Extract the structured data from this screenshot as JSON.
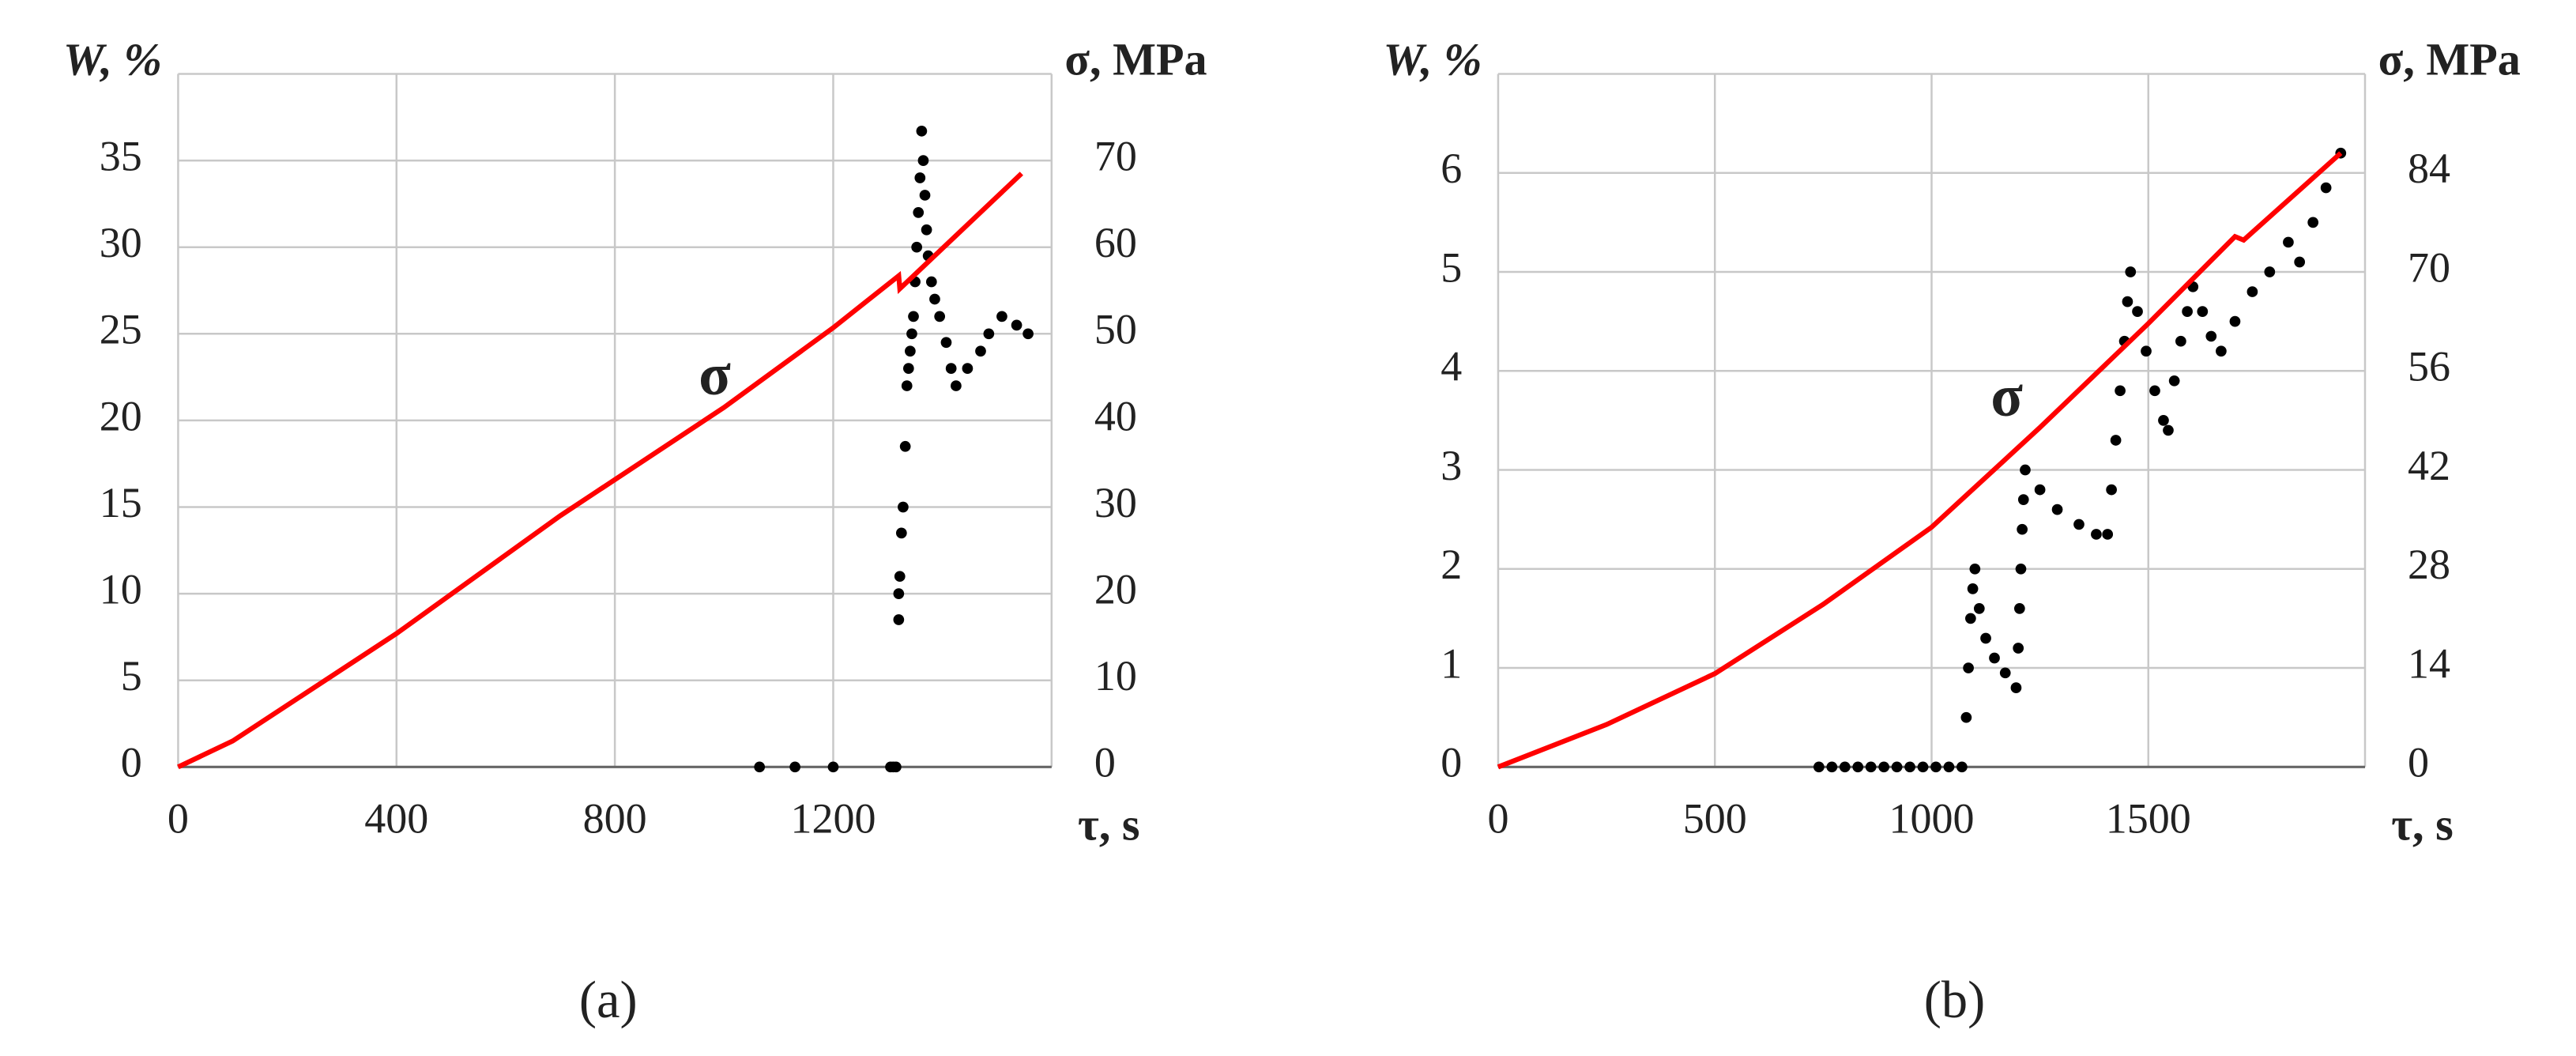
{
  "chart_data": [
    {
      "type": "scatter",
      "label": "(a)",
      "x_label": "τ, s",
      "y_label": "W, %",
      "y2_label": "σ, MPa",
      "annotation": "σ",
      "xlim": [
        0,
        1600
      ],
      "xticks": [
        0,
        400,
        800,
        1200
      ],
      "ylim": [
        0,
        40
      ],
      "yticks": [
        0,
        5,
        10,
        15,
        20,
        25,
        30,
        35
      ],
      "y2lim": [
        0,
        80
      ],
      "y2ticks": [
        0,
        10,
        20,
        30,
        40,
        50,
        60,
        70
      ],
      "grid": true,
      "series": [
        {
          "mode": "markers",
          "color": "#000000",
          "x": [
            1065,
            1130,
            1200,
            1305,
            1310,
            1315,
            1320,
            1320,
            1322,
            1325,
            1328,
            1332,
            1335,
            1338,
            1341,
            1344,
            1347,
            1350,
            1353,
            1356,
            1359,
            1362,
            1365,
            1368,
            1371,
            1374,
            1380,
            1386,
            1395,
            1407,
            1416,
            1425,
            1446,
            1470,
            1485,
            1509,
            1536,
            1557
          ],
          "values": [
            0,
            0,
            0,
            0,
            0,
            0,
            8.5,
            10,
            11,
            13.5,
            15,
            18.5,
            22,
            23,
            24,
            25,
            26,
            28,
            30,
            32,
            34,
            36.7,
            35,
            33,
            31,
            29.5,
            28,
            27,
            26,
            24.5,
            23,
            22,
            23,
            24,
            25,
            26,
            25.5,
            25
          ]
        },
        {
          "mode": "line",
          "color": "#ff0000",
          "axis": "y2",
          "x": [
            0,
            100,
            400,
            700,
            760,
            1000,
            1200,
            1320,
            1322,
            1545
          ],
          "values": [
            0,
            3,
            15.4,
            29,
            31.5,
            41.5,
            50.7,
            56.7,
            55.2,
            68.5
          ]
        }
      ]
    },
    {
      "type": "scatter",
      "label": "(b)",
      "x_label": "τ, s",
      "y_label": "W, %",
      "y2_label": "σ, MPa",
      "annotation": "σ",
      "xlim": [
        0,
        2000
      ],
      "xticks": [
        0,
        500,
        1000,
        1500
      ],
      "ylim": [
        0,
        7
      ],
      "yticks": [
        0,
        1,
        2,
        3,
        4,
        5,
        6
      ],
      "y2lim": [
        0,
        98
      ],
      "y2ticks": [
        0,
        14,
        28,
        42,
        56,
        70,
        84
      ],
      "grid": true,
      "series": [
        {
          "mode": "markers",
          "color": "#000000",
          "x": [
            740,
            770,
            800,
            830,
            860,
            890,
            920,
            950,
            980,
            1010,
            1040,
            1070,
            1080,
            1085,
            1090,
            1095,
            1100,
            1110,
            1125,
            1145,
            1170,
            1195,
            1200,
            1203,
            1206,
            1209,
            1212,
            1216,
            1250,
            1290,
            1340,
            1380,
            1406,
            1415,
            1425,
            1435,
            1445,
            1452,
            1459,
            1475,
            1495,
            1515,
            1535,
            1546,
            1560,
            1575,
            1590,
            1603,
            1625,
            1645,
            1668,
            1700,
            1740,
            1780,
            1823,
            1849,
            1880,
            1910,
            1944
          ],
          "values": [
            0,
            0,
            0,
            0,
            0,
            0,
            0,
            0,
            0,
            0,
            0,
            0,
            0.5,
            1,
            1.5,
            1.8,
            2,
            1.6,
            1.3,
            1.1,
            0.95,
            0.8,
            1.2,
            1.6,
            2,
            2.4,
            2.7,
            3,
            2.8,
            2.6,
            2.45,
            2.35,
            2.35,
            2.8,
            3.3,
            3.8,
            4.3,
            4.7,
            5,
            4.6,
            4.2,
            3.8,
            3.5,
            3.4,
            3.9,
            4.3,
            4.6,
            4.85,
            4.6,
            4.35,
            4.2,
            4.5,
            4.8,
            5,
            5.3,
            5.1,
            5.5,
            5.85,
            6.2
          ]
        },
        {
          "mode": "line",
          "color": "#ff0000",
          "axis": "y2",
          "x": [
            0,
            250,
            500,
            750,
            1000,
            1250,
            1500,
            1700,
            1720,
            1944
          ],
          "values": [
            0,
            6,
            13.2,
            23,
            33.9,
            48,
            62.7,
            75,
            74.5,
            86.8
          ]
        }
      ]
    }
  ]
}
